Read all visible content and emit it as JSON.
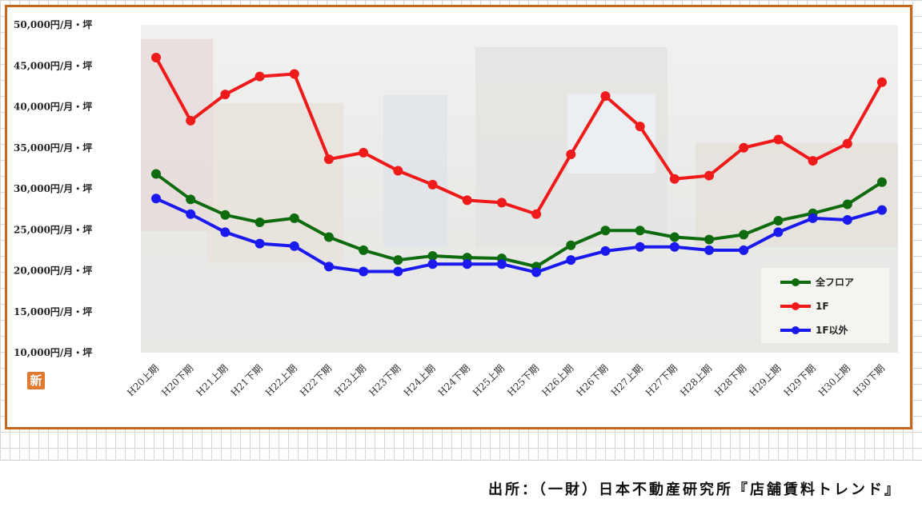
{
  "chart_data": {
    "type": "line",
    "title": "",
    "xlabel": "",
    "ylabel": "",
    "categories": [
      "H20上期",
      "H20下期",
      "H21上期",
      "H21下期",
      "H22上期",
      "H22下期",
      "H23上期",
      "H23下期",
      "H24上期",
      "H24下期",
      "H25上期",
      "H25下期",
      "H26上期",
      "H26下期",
      "H27上期",
      "H27下期",
      "H28上期",
      "H28下期",
      "H29上期",
      "H29下期",
      "H30上期",
      "H30下期"
    ],
    "y_ticks": [
      "10,000円/月・坪",
      "15,000円/月・坪",
      "20,000円/月・坪",
      "25,000円/月・坪",
      "30,000円/月・坪",
      "35,000円/月・坪",
      "40,000円/月・坪",
      "45,000円/月・坪",
      "50,000円/月・坪"
    ],
    "ylim": [
      10000,
      50000
    ],
    "grid": false,
    "legend_position": "bottom-right",
    "series": [
      {
        "name": "全フロア",
        "color": "#0e6b0e",
        "values": [
          31800,
          28700,
          26800,
          25900,
          26400,
          24100,
          22500,
          21300,
          21800,
          21600,
          21500,
          20500,
          23100,
          24900,
          24900,
          24100,
          23800,
          24400,
          26100,
          27000,
          28100,
          30800
        ]
      },
      {
        "name": "1F",
        "color": "#ef1a1a",
        "values": [
          46000,
          38300,
          41500,
          43700,
          44000,
          33600,
          34400,
          32200,
          30500,
          28600,
          28300,
          26900,
          34200,
          41300,
          37600,
          31200,
          31600,
          35000,
          36000,
          33400,
          35500,
          43000
        ]
      },
      {
        "name": "1F以外",
        "color": "#1a1aee",
        "values": [
          28800,
          26900,
          24700,
          23300,
          23000,
          20500,
          19900,
          19900,
          20800,
          20800,
          20800,
          19800,
          21300,
          22400,
          22900,
          22900,
          22500,
          22500,
          24700,
          26400,
          26200,
          27400
        ]
      }
    ]
  },
  "badge_icon": "新",
  "source_text": "出所：（一財）日本不動産研究所『店舗賃料トレンド』"
}
